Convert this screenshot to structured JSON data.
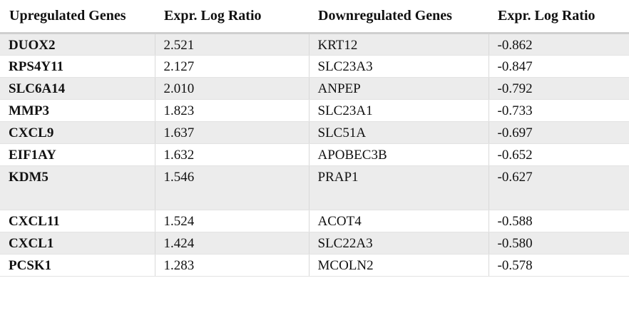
{
  "table": {
    "headers": [
      "Upregulated Genes",
      "Expr. Log Ratio",
      "Downregulated Genes",
      "Expr. Log Ratio"
    ],
    "rows": [
      {
        "up_gene": "DUOX2",
        "up_ratio": "2.521",
        "down_gene": "KRT12",
        "down_ratio": "-0.862"
      },
      {
        "up_gene": "RPS4Y11",
        "up_ratio": "2.127",
        "down_gene": "SLC23A3",
        "down_ratio": "-0.847"
      },
      {
        "up_gene": "SLC6A14",
        "up_ratio": "2.010",
        "down_gene": "ANPEP",
        "down_ratio": "-0.792"
      },
      {
        "up_gene": "MMP3",
        "up_ratio": "1.823",
        "down_gene": "SLC23A1",
        "down_ratio": "-0.733"
      },
      {
        "up_gene": "CXCL9",
        "up_ratio": "1.637",
        "down_gene": "SLC51A",
        "down_ratio": "-0.697"
      },
      {
        "up_gene": "EIF1AY",
        "up_ratio": "1.632",
        "down_gene": "APOBEC3B",
        "down_ratio": "-0.652"
      },
      {
        "up_gene": "KDM5",
        "up_ratio": "1.546",
        "down_gene": "PRAP1",
        "down_ratio": "-0.627"
      },
      {
        "up_gene": "CXCL11",
        "up_ratio": "1.524",
        "down_gene": "ACOT4",
        "down_ratio": "-0.588"
      },
      {
        "up_gene": "CXCL1",
        "up_ratio": "1.424",
        "down_gene": "SLC22A3",
        "down_ratio": "-0.580"
      },
      {
        "up_gene": "PCSK1",
        "up_ratio": "1.283",
        "down_gene": "MCOLN2",
        "down_ratio": "-0.578"
      }
    ]
  }
}
